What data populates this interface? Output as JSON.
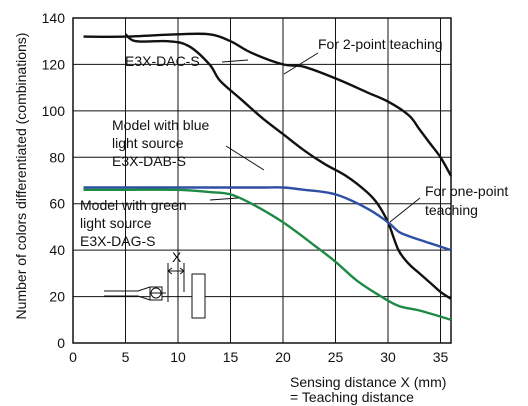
{
  "chart_data": {
    "type": "line",
    "title": "",
    "xlabel": "Sensing distance X (mm)",
    "xlabel_sub": "= Teaching distance",
    "ylabel": "Number of colors differentiated (combinations)",
    "xlim": [
      0,
      36
    ],
    "ylim": [
      0,
      140
    ],
    "x_ticks": [
      0,
      5,
      10,
      15,
      20,
      25,
      30,
      35
    ],
    "y_ticks": [
      0,
      20,
      40,
      60,
      80,
      100,
      120,
      140
    ],
    "grid": true,
    "series": [
      {
        "name": "E3X-DAC-S For 2-point teaching",
        "color": "#111111",
        "x": [
          1,
          5,
          10,
          13,
          15,
          17,
          20,
          22,
          25,
          28,
          30,
          32,
          33,
          34,
          35,
          36
        ],
        "y": [
          132,
          132,
          133,
          133,
          130,
          125,
          120,
          119,
          114,
          108,
          104,
          98,
          92,
          86,
          80,
          72
        ]
      },
      {
        "name": "E3X-DAC-S For one-point teaching",
        "color": "#111111",
        "x": [
          5,
          6,
          9,
          11,
          13,
          14,
          16,
          18,
          20,
          22,
          24,
          26,
          28,
          29,
          30,
          31,
          32,
          33,
          34,
          35,
          36
        ],
        "y": [
          133,
          130,
          130,
          128,
          120,
          113,
          105,
          97,
          90,
          83,
          77,
          72,
          65,
          60,
          52,
          40,
          34,
          30,
          26,
          22,
          19
        ]
      },
      {
        "name": "Model with blue light source E3X-DAB-S",
        "color": "#2e4fa3",
        "x": [
          1,
          5,
          10,
          15,
          18,
          20,
          22,
          25,
          28,
          30,
          31,
          32,
          34,
          36
        ],
        "y": [
          67,
          67,
          67,
          67,
          67,
          67,
          66,
          64,
          58,
          52,
          48,
          46,
          43,
          40
        ]
      },
      {
        "name": "Model with green light source E3X-DAG-S",
        "color": "#1d8a45",
        "x": [
          1,
          5,
          10,
          13,
          15,
          17,
          20,
          23,
          25,
          27,
          29,
          31,
          33,
          36
        ],
        "y": [
          66,
          66,
          66,
          65,
          64,
          60,
          52,
          42,
          35,
          27,
          21,
          16,
          14,
          10
        ]
      }
    ],
    "annotations": {
      "e3x_dac_s": "E3X-DAC-S",
      "two_point": "For 2-point teaching",
      "one_point_1": "For one-point",
      "one_point_2": "teaching",
      "blue_1": "Model with blue",
      "blue_2": "light source",
      "blue_3": "E3X-DAB-S",
      "green_1": "Model with green",
      "green_2": "light source",
      "green_3": "E3X-DAG-S",
      "x_marker": "X"
    }
  }
}
